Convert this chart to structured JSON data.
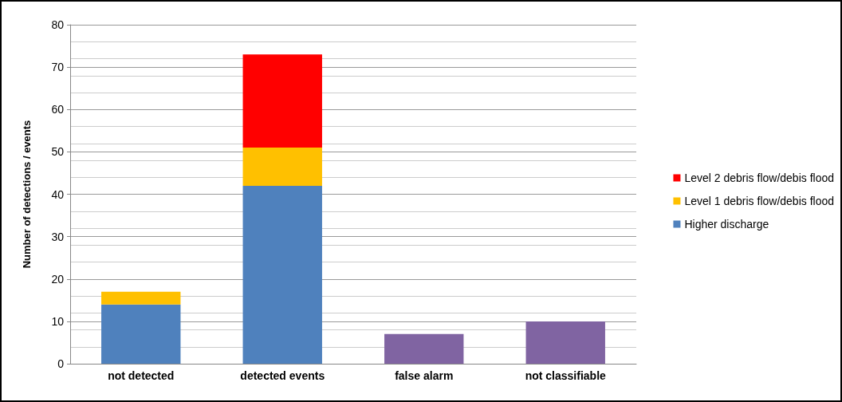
{
  "chart_data": {
    "type": "bar",
    "stacked": true,
    "ylabel": "Number of detections / events",
    "categories": [
      "not detected",
      "detected events",
      "false alarm",
      "not classifiable"
    ],
    "series": [
      {
        "name": "Higher discharge",
        "color": "#4f81bd",
        "values": [
          14,
          42,
          null,
          null
        ]
      },
      {
        "name": "Level 1 debris flow/debis flood",
        "color": "#ffc000",
        "values": [
          3,
          9,
          null,
          null
        ]
      },
      {
        "name": "Level 2 debris flow/debis flood",
        "color": "#ff0000",
        "values": [
          null,
          22,
          null,
          null
        ]
      },
      {
        "color": "#8064a2",
        "values": [
          null,
          null,
          7,
          10
        ]
      }
    ],
    "ylim": [
      0,
      80
    ],
    "yticks": [
      0,
      10,
      20,
      30,
      40,
      50,
      60,
      70,
      80
    ],
    "grid": "y",
    "legend": "right"
  }
}
